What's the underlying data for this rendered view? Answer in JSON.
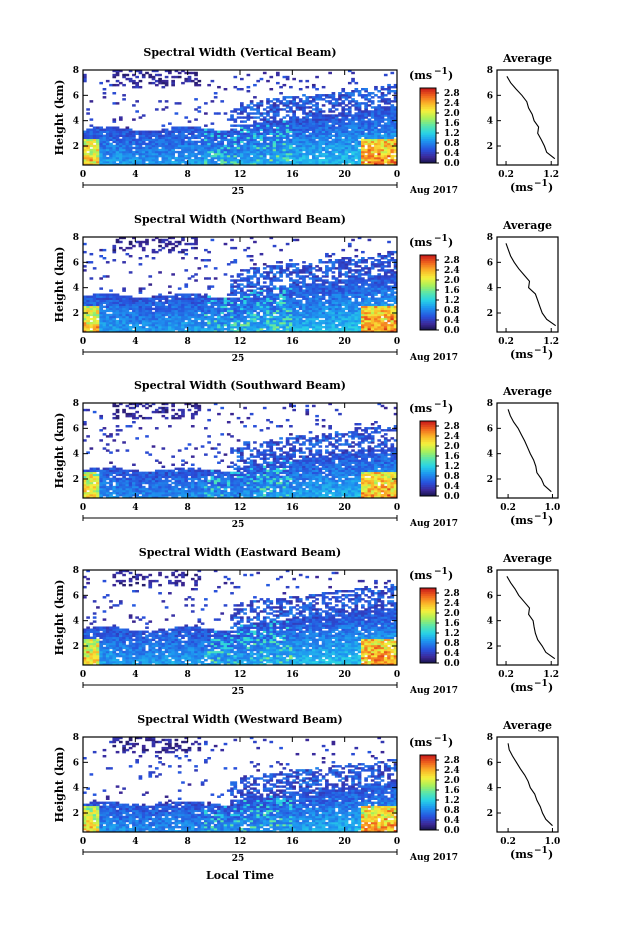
{
  "figure": {
    "xlabel": "Local Time",
    "date_label": "Aug 2017",
    "day_label": "25",
    "ylabel": "Height (km)",
    "unit_label": "(ms",
    "unit_exp": "−1",
    "avg_title": "Average"
  },
  "chart_data": [
    {
      "type": "heatmap",
      "title": "Spectral Width (Vertical Beam)",
      "x_ticks": [
        "0",
        "4",
        "8",
        "12",
        "16",
        "20",
        "0"
      ],
      "y_ticks": [
        "2",
        "4",
        "6",
        "8"
      ],
      "xlim": [
        0,
        24
      ],
      "ylim": [
        0.5,
        8
      ],
      "colorbar_ticks": [
        "0.0",
        "0.4",
        "0.8",
        "1.2",
        "1.6",
        "2.0",
        "2.4",
        "2.8"
      ],
      "colorbar_range": [
        0,
        3.0
      ],
      "profile": {
        "title": "Average",
        "x_ticks": [
          "0.2",
          "1.2"
        ],
        "xlim": [
          0,
          1.35
        ],
        "heights": [
          1,
          1.5,
          2,
          2.5,
          3,
          3.5,
          4,
          4.5,
          5,
          5.5,
          6,
          6.5,
          7,
          7.5
        ],
        "values": [
          1.28,
          1.1,
          1.05,
          0.98,
          0.9,
          0.92,
          0.82,
          0.78,
          0.7,
          0.66,
          0.55,
          0.42,
          0.3,
          0.22
        ]
      }
    },
    {
      "type": "heatmap",
      "title": "Spectral Width (Northward Beam)",
      "x_ticks": [
        "0",
        "4",
        "8",
        "12",
        "16",
        "20",
        "0"
      ],
      "y_ticks": [
        "2",
        "4",
        "6",
        "8"
      ],
      "xlim": [
        0,
        24
      ],
      "ylim": [
        0.5,
        8
      ],
      "colorbar_ticks": [
        "0.0",
        "0.4",
        "0.8",
        "1.2",
        "1.6",
        "2.0",
        "2.4",
        "2.8"
      ],
      "colorbar_range": [
        0,
        3.0
      ],
      "profile": {
        "title": "Average",
        "x_ticks": [
          "0.2",
          "1.2"
        ],
        "xlim": [
          0,
          1.35
        ],
        "heights": [
          1,
          1.5,
          2,
          2.5,
          3,
          3.5,
          4,
          4.5,
          5,
          5.5,
          6,
          6.5,
          7,
          7.5
        ],
        "values": [
          1.3,
          1.1,
          1.0,
          0.95,
          0.9,
          0.85,
          0.7,
          0.72,
          0.6,
          0.48,
          0.38,
          0.3,
          0.25,
          0.2
        ]
      }
    },
    {
      "type": "heatmap",
      "title": "Spectral Width (Southward Beam)",
      "x_ticks": [
        "0",
        "4",
        "8",
        "12",
        "16",
        "20",
        "0"
      ],
      "y_ticks": [
        "2",
        "4",
        "6",
        "8"
      ],
      "xlim": [
        0,
        24
      ],
      "ylim": [
        0.5,
        8
      ],
      "colorbar_ticks": [
        "0.0",
        "0.4",
        "0.8",
        "1.2",
        "1.6",
        "2.0",
        "2.4",
        "2.8"
      ],
      "colorbar_range": [
        0,
        3.0
      ],
      "profile": {
        "title": "Average",
        "x_ticks": [
          "0.2",
          "1.0"
        ],
        "xlim": [
          0,
          1.1
        ],
        "heights": [
          1,
          1.5,
          2,
          2.5,
          3,
          3.5,
          4,
          4.5,
          5,
          5.5,
          6,
          6.5,
          7,
          7.5
        ],
        "values": [
          0.98,
          0.85,
          0.8,
          0.72,
          0.7,
          0.66,
          0.6,
          0.55,
          0.5,
          0.44,
          0.38,
          0.3,
          0.24,
          0.2
        ]
      }
    },
    {
      "type": "heatmap",
      "title": "Spectral Width (Eastward Beam)",
      "x_ticks": [
        "0",
        "4",
        "8",
        "12",
        "16",
        "20",
        "0"
      ],
      "y_ticks": [
        "2",
        "4",
        "6",
        "8"
      ],
      "xlim": [
        0,
        24
      ],
      "ylim": [
        0.5,
        8
      ],
      "colorbar_ticks": [
        "0.0",
        "0.4",
        "0.8",
        "1.2",
        "1.6",
        "2.0",
        "2.4",
        "2.8"
      ],
      "colorbar_range": [
        0,
        3.0
      ],
      "profile": {
        "title": "Average",
        "x_ticks": [
          "0.2",
          "1.2"
        ],
        "xlim": [
          0,
          1.35
        ],
        "heights": [
          1,
          1.5,
          2,
          2.5,
          3,
          3.5,
          4,
          4.5,
          5,
          5.5,
          6,
          6.5,
          7,
          7.5
        ],
        "values": [
          1.28,
          1.08,
          1.0,
          0.9,
          0.85,
          0.82,
          0.8,
          0.7,
          0.72,
          0.6,
          0.48,
          0.4,
          0.3,
          0.22
        ]
      }
    },
    {
      "type": "heatmap",
      "title": "Spectral Width (Westward Beam)",
      "x_ticks": [
        "0",
        "4",
        "8",
        "12",
        "16",
        "20",
        "0"
      ],
      "y_ticks": [
        "2",
        "4",
        "6",
        "8"
      ],
      "xlim": [
        0,
        24
      ],
      "ylim": [
        0.5,
        8
      ],
      "colorbar_ticks": [
        "0.0",
        "0.4",
        "0.8",
        "1.2",
        "1.6",
        "2.0",
        "2.4",
        "2.8"
      ],
      "colorbar_range": [
        0,
        3.0
      ],
      "profile": {
        "title": "Average",
        "x_ticks": [
          "0.2",
          "1.0"
        ],
        "xlim": [
          0,
          1.1
        ],
        "heights": [
          1,
          1.5,
          2,
          2.5,
          3,
          3.5,
          4,
          4.5,
          5,
          5.5,
          6,
          6.5,
          7,
          7.5
        ],
        "values": [
          1.0,
          0.88,
          0.82,
          0.78,
          0.72,
          0.68,
          0.6,
          0.56,
          0.5,
          0.42,
          0.35,
          0.28,
          0.22,
          0.2
        ]
      }
    }
  ]
}
